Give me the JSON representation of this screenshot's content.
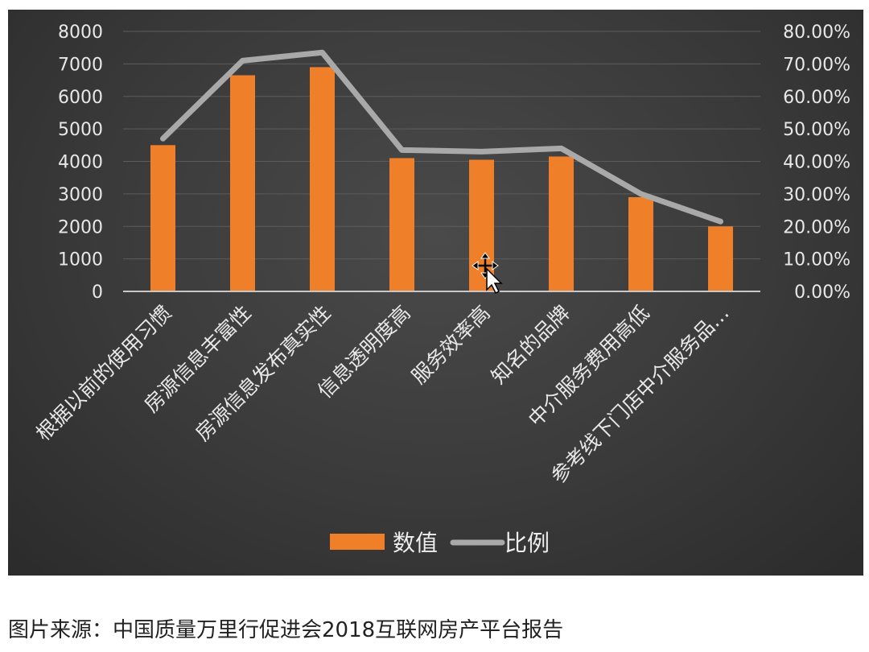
{
  "chart_data": {
    "type": "bar",
    "categories": [
      "根据以前的使用习惯",
      "房源信息丰富性",
      "房源信息发布真实性",
      "信息透明度高",
      "服务效率高",
      "知名的品牌",
      "中介服务费用高低",
      "参考线下门店中介服务品…"
    ],
    "series": [
      {
        "name": "数值",
        "type": "bar",
        "axis": "left",
        "color": "#f07f2a",
        "values": [
          4500,
          6650,
          6900,
          4100,
          4050,
          4150,
          2900,
          2000
        ]
      },
      {
        "name": "比例",
        "type": "line",
        "axis": "right",
        "color": "#a9a9a9",
        "values": [
          0.47,
          0.71,
          0.735,
          0.435,
          0.43,
          0.44,
          0.3,
          0.215
        ]
      }
    ],
    "y_left": {
      "ylim": [
        0,
        8000
      ],
      "ticks": [
        "0",
        "1000",
        "2000",
        "3000",
        "4000",
        "5000",
        "6000",
        "7000",
        "8000"
      ]
    },
    "y_right": {
      "ylim": [
        0,
        0.8
      ],
      "ticks": [
        "0.00%",
        "10.00%",
        "20.00%",
        "30.00%",
        "40.00%",
        "50.00%",
        "60.00%",
        "70.00%",
        "80.00%"
      ]
    },
    "grid": true,
    "legend_position": "bottom"
  },
  "caption": "图片来源：中国质量万里行促进会2018互联网房产平台报告"
}
